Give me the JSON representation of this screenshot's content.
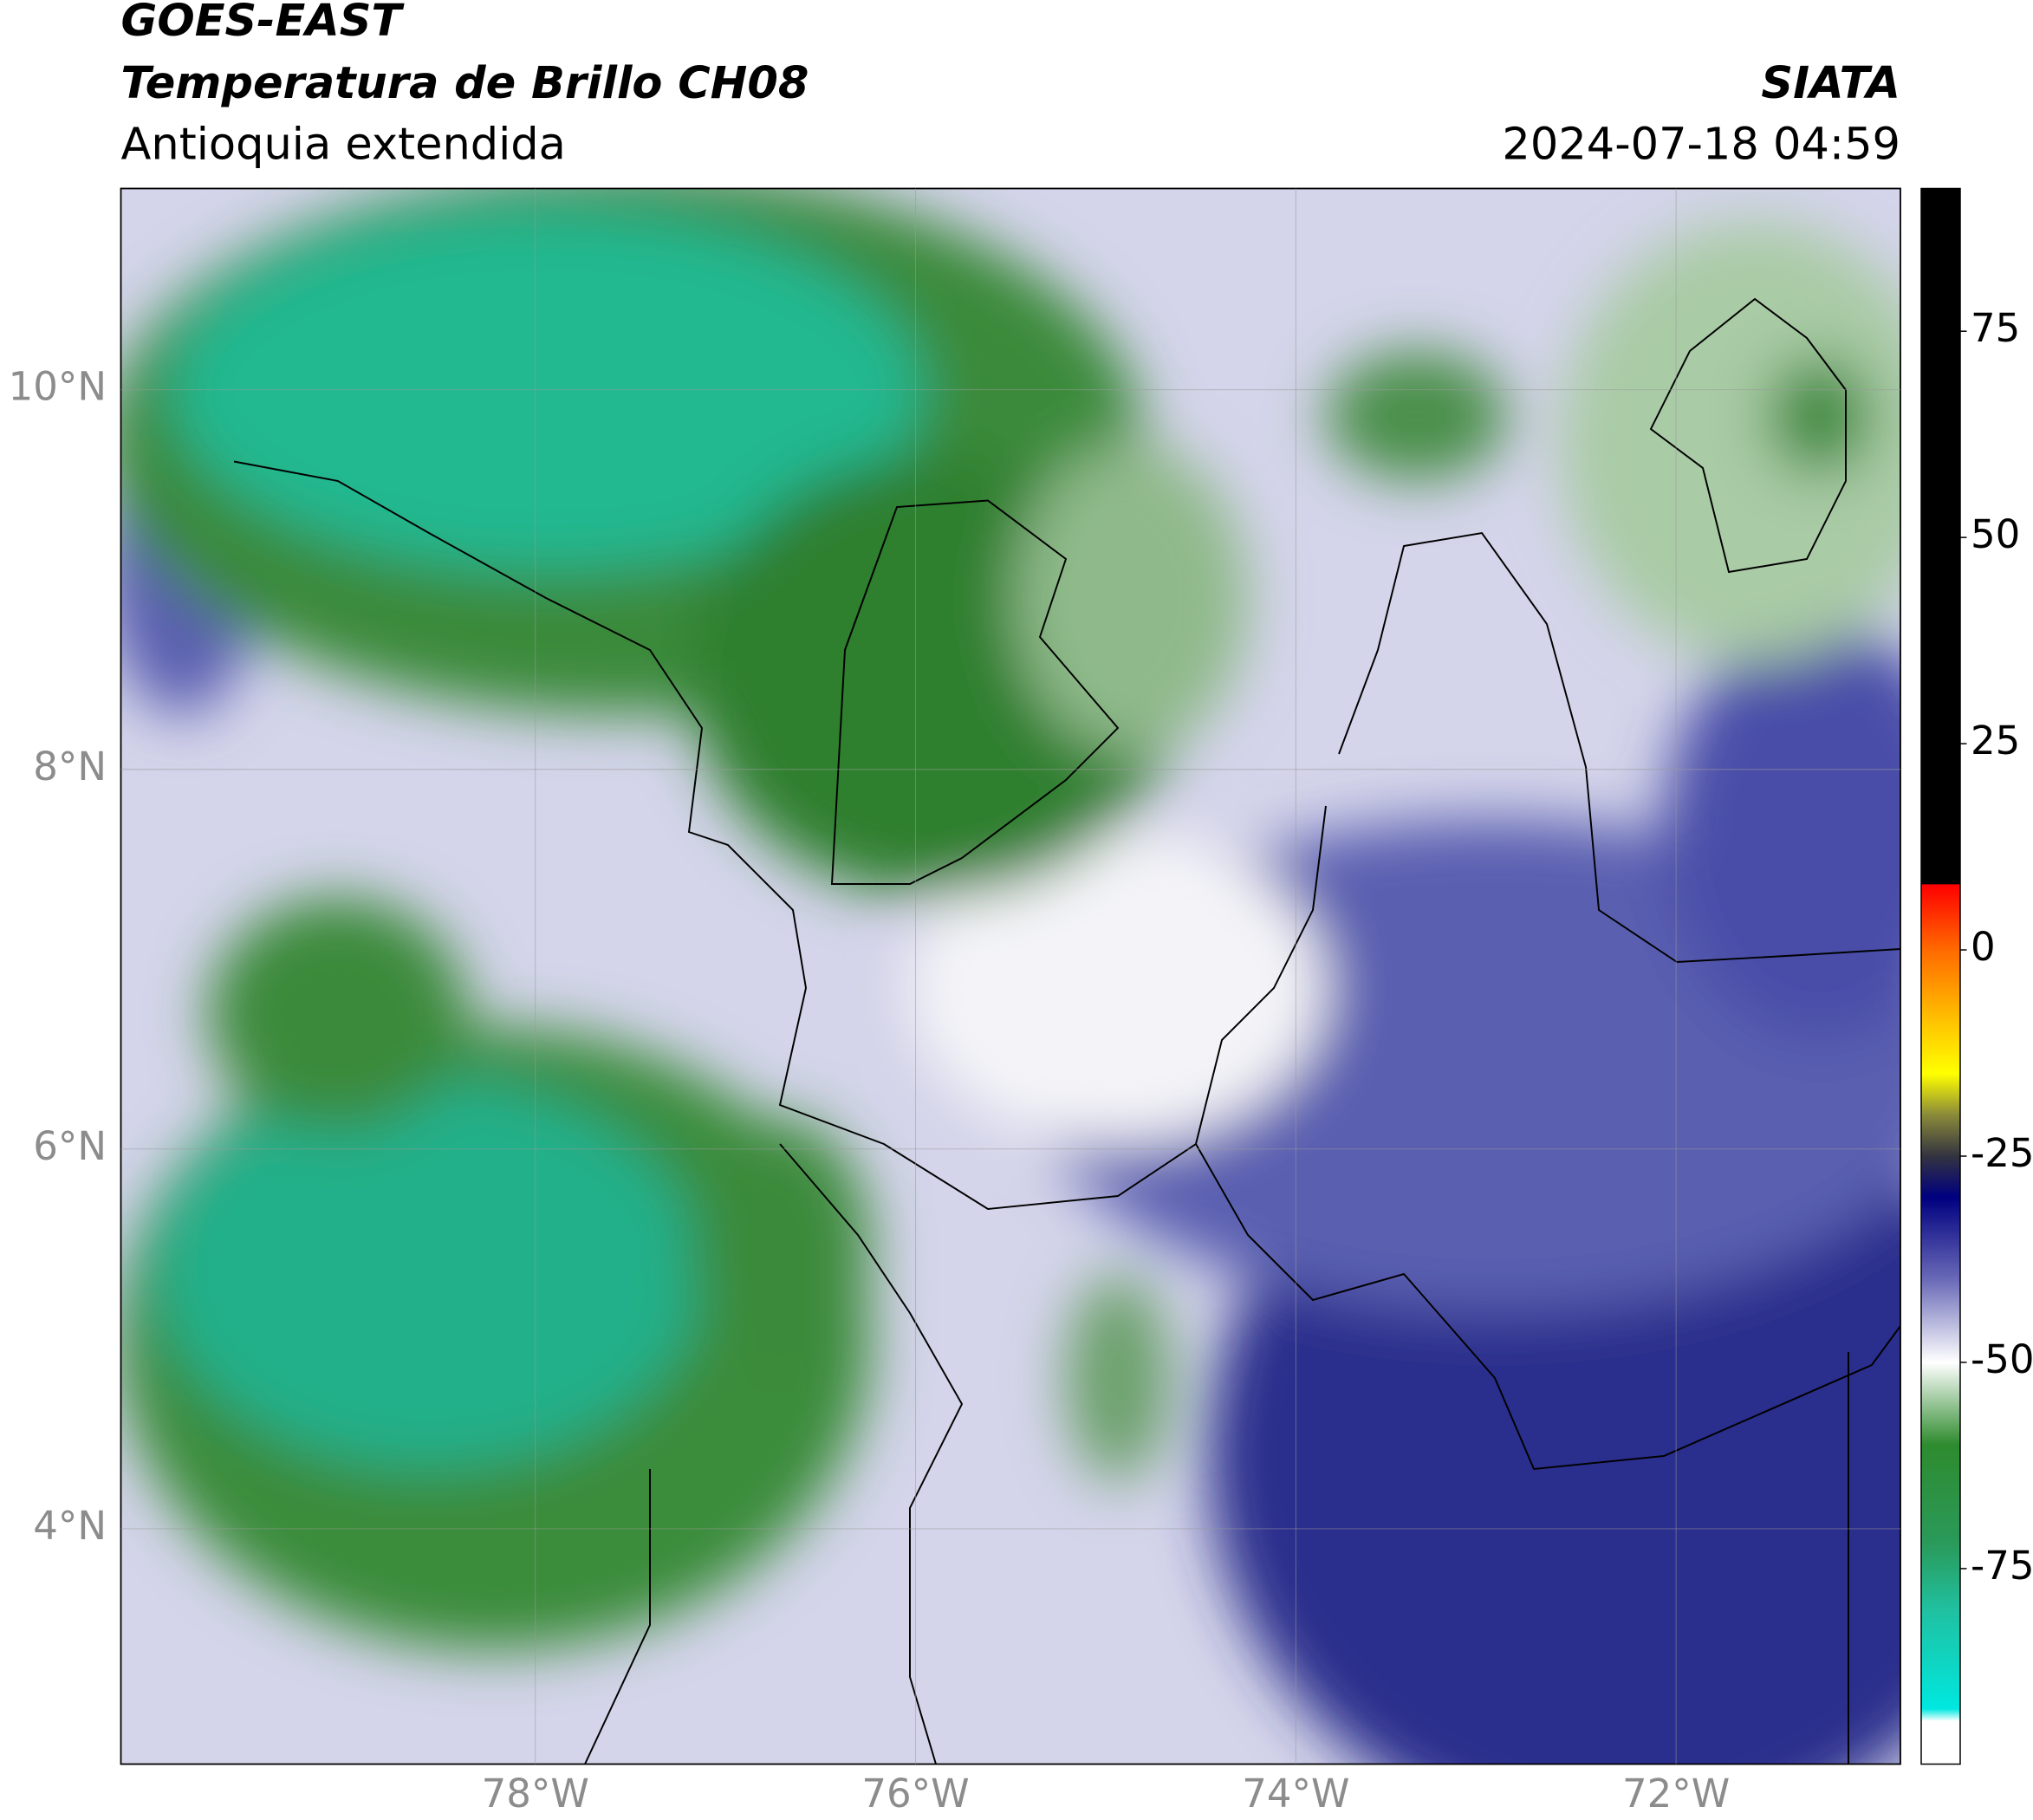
{
  "header": {
    "satellite": "GOES-EAST",
    "product": "Temperatura de Brillo CH08",
    "region": "Antioquia extendida",
    "source": "SIATA",
    "datetime": "2024-07-18 04:59"
  },
  "map": {
    "lon_range": [
      -80.18,
      -70.82
    ],
    "lat_range": [
      2.76,
      11.06
    ],
    "lat_ticks": [
      {
        "value": 4,
        "label": "4°N"
      },
      {
        "value": 6,
        "label": "6°N"
      },
      {
        "value": 8,
        "label": "8°N"
      },
      {
        "value": 10,
        "label": "10°N"
      }
    ],
    "lon_ticks": [
      {
        "value": -78,
        "label": "78°W"
      },
      {
        "value": -76,
        "label": "76°W"
      },
      {
        "value": -74,
        "label": "74°W"
      },
      {
        "value": -72,
        "label": "72°W"
      }
    ]
  },
  "colorbar": {
    "range": [
      -98.7,
      92.3
    ],
    "ticks": [
      75,
      50,
      25,
      0,
      -25,
      -50,
      -75
    ],
    "stops": [
      {
        "value": 92.3,
        "color": "#000000"
      },
      {
        "value": 8,
        "color": "#000000"
      },
      {
        "value": 7.9,
        "color": "#ff0000"
      },
      {
        "value": 0,
        "color": "#ff6a00"
      },
      {
        "value": -10,
        "color": "#ffd000"
      },
      {
        "value": -15,
        "color": "#ffff00"
      },
      {
        "value": -20,
        "color": "#8a8a3a"
      },
      {
        "value": -25,
        "color": "#333340"
      },
      {
        "value": -30,
        "color": "#000080"
      },
      {
        "value": -40,
        "color": "#6a6ab8"
      },
      {
        "value": -50,
        "color": "#ffffff"
      },
      {
        "value": -60,
        "color": "#2e8b2e"
      },
      {
        "value": -72,
        "color": "#2a9a5a"
      },
      {
        "value": -80,
        "color": "#20c0a0"
      },
      {
        "value": -92,
        "color": "#00e8e0"
      },
      {
        "value": -93.5,
        "color": "#ffffff"
      },
      {
        "value": -98.7,
        "color": "#ffffff"
      }
    ]
  }
}
